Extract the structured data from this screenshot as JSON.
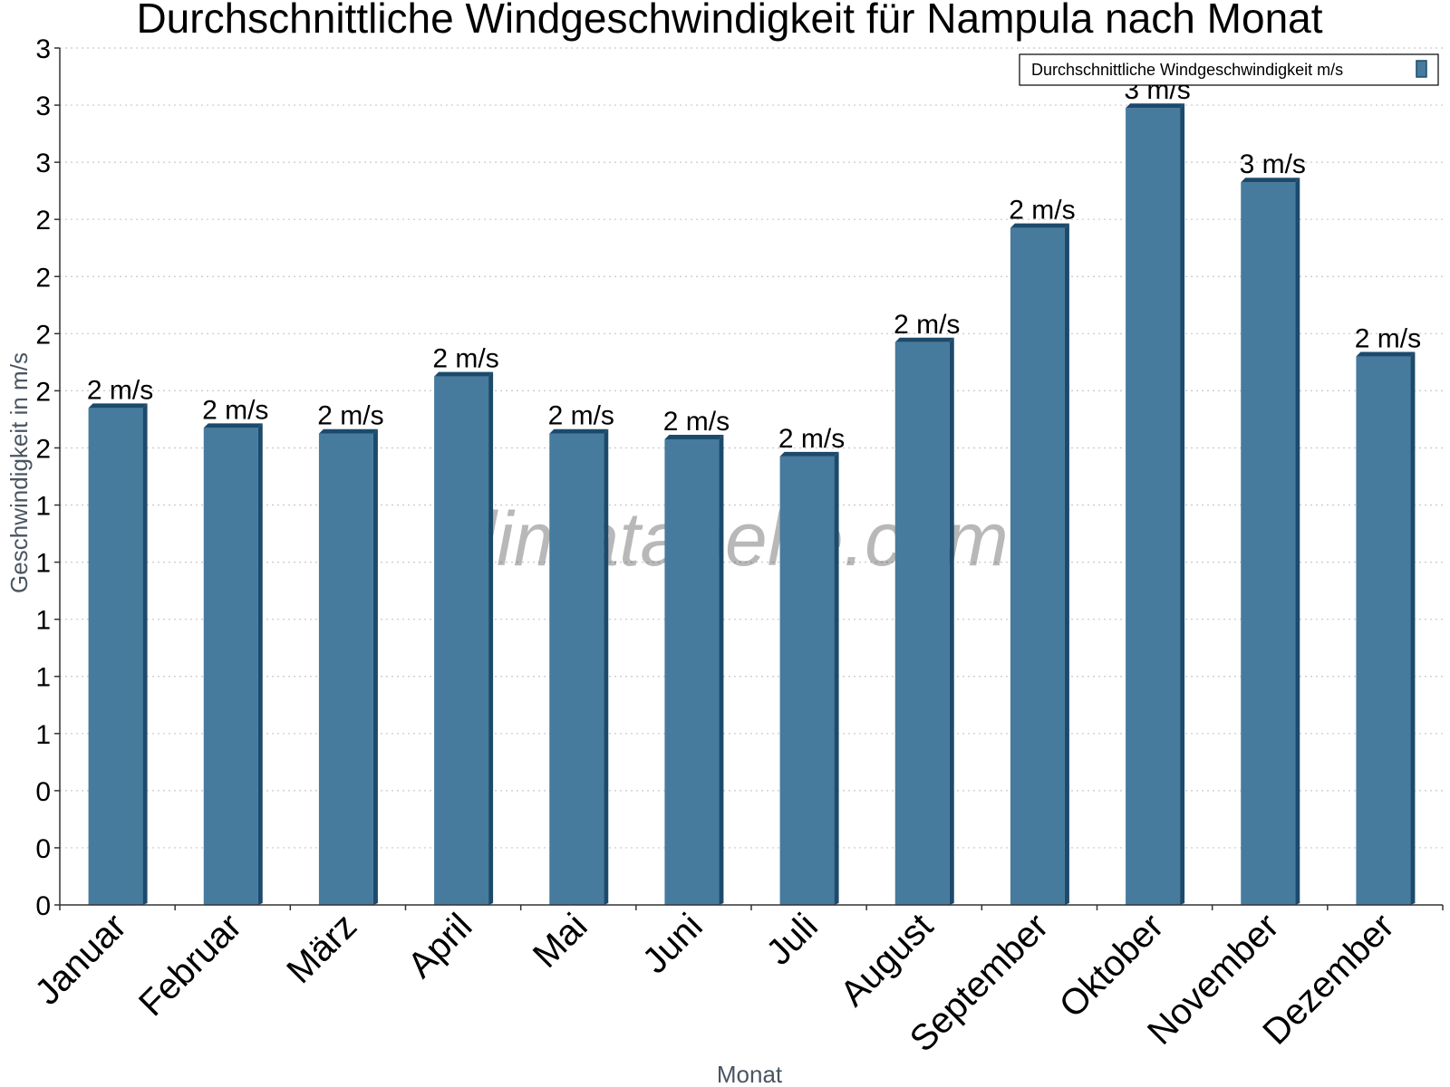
{
  "watermark": "klimatabelle.com",
  "chart_data": {
    "type": "bar",
    "title": "Durchschnittliche Windgeschwindigkeit für Nampula nach Monat",
    "xlabel": "Monat",
    "ylabel": "Geschwindigkeit in m/s",
    "categories": [
      "Januar",
      "Februar",
      "März",
      "April",
      "Mai",
      "Juni",
      "Juli",
      "August",
      "September",
      "Oktober",
      "November",
      "Dezember"
    ],
    "series": [
      {
        "name": "Durchschnittliche Windgeschwindigkeit m/s",
        "values": [
          1.74,
          1.67,
          1.65,
          1.85,
          1.65,
          1.63,
          1.57,
          1.97,
          2.37,
          2.79,
          2.53,
          1.92
        ],
        "labels": [
          "2 m/s",
          "2 m/s",
          "2 m/s",
          "2 m/s",
          "2 m/s",
          "2 m/s",
          "2 m/s",
          "2 m/s",
          "2 m/s",
          "3 m/s",
          "3 m/s",
          "2 m/s"
        ],
        "color": "#467b9e",
        "edge_color": "#1c4a6c"
      }
    ],
    "yticks": [
      0,
      0.2,
      0.4,
      0.6,
      0.8,
      1.0,
      1.2,
      1.4,
      1.6,
      1.8,
      2.0,
      2.2,
      2.4,
      2.6,
      2.8,
      3.0
    ],
    "ytick_labels": [
      "0",
      "0",
      "0",
      "1",
      "1",
      "1",
      "1",
      "1",
      "2",
      "2",
      "2",
      "2",
      "2",
      "3",
      "3",
      "3"
    ],
    "ylim": [
      0,
      3.0
    ],
    "grid": true,
    "legend_position": "top-right"
  }
}
